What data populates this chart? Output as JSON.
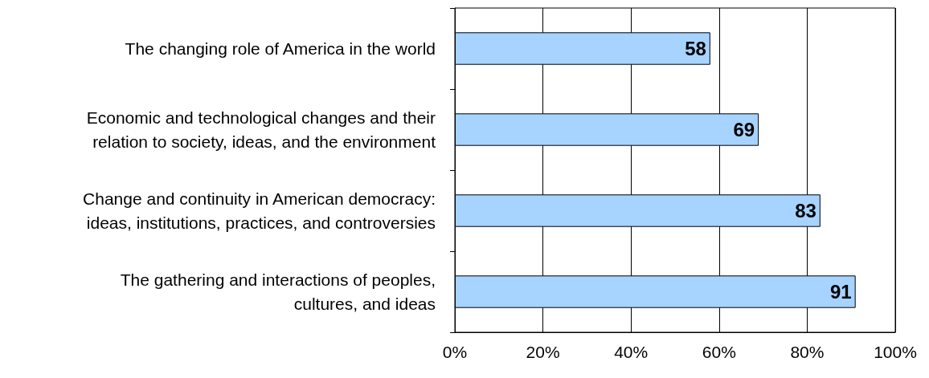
{
  "chart_data": {
    "type": "bar",
    "orientation": "horizontal",
    "categories": [
      "The changing role of America in the world",
      "Economic and technological changes and their\nrelation to society, ideas, and the environment",
      "Change and continuity in American democracy:\nideas, institutions, practices, and controversies",
      "The gathering and interactions of peoples,\ncultures, and ideas"
    ],
    "values": [
      58,
      69,
      83,
      91
    ],
    "color": "#a6d3ff",
    "xlim": [
      0,
      100
    ],
    "xticks": [
      {
        "value": 0,
        "label": "0%"
      },
      {
        "value": 20,
        "label": "20%"
      },
      {
        "value": 40,
        "label": "40%"
      },
      {
        "value": 60,
        "label": "60%"
      },
      {
        "value": 80,
        "label": "80%"
      },
      {
        "value": 100,
        "label": "100%"
      }
    ],
    "grid": "x",
    "data_labels": true
  }
}
